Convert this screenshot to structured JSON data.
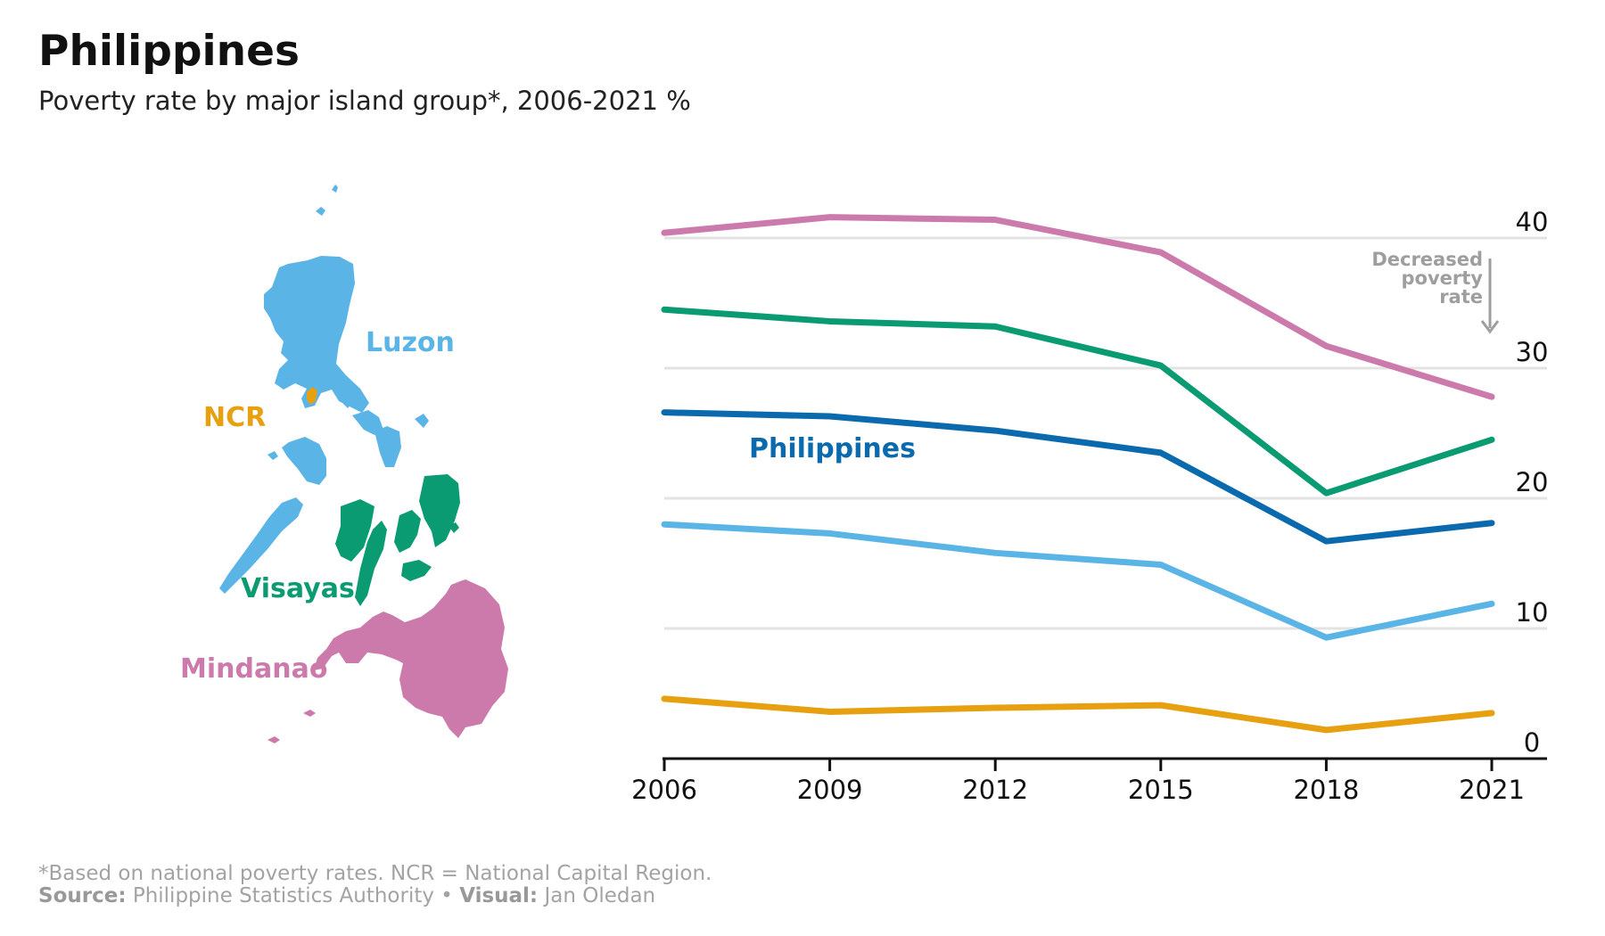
{
  "title": "Philippines",
  "subtitle": "Poverty rate by major island group*, 2006-2021 %",
  "footnote": {
    "note": "*Based on national poverty rates. NCR = National Capital Region.",
    "source_label": "Source:",
    "source": "Philippine Statistics Authority",
    "separator": "•",
    "visual_label": "Visual:",
    "visual": "Jan Oledan"
  },
  "map": {
    "labels": {
      "luzon": "Luzon",
      "ncr": "NCR",
      "visayas": "Visayas",
      "mindanao": "Mindanao"
    },
    "colors": {
      "luzon": "#5ab4e6",
      "ncr": "#e6a010",
      "visayas": "#0a9b72",
      "mindanao": "#cc7aab"
    }
  },
  "annotation": {
    "line1": "Decreased",
    "line2": "poverty",
    "line3": "rate"
  },
  "chart_data": {
    "type": "line",
    "x": [
      2006,
      2009,
      2012,
      2015,
      2018,
      2021
    ],
    "xlim": [
      2006,
      2021
    ],
    "ylim": [
      0,
      40
    ],
    "yticks": [
      0,
      10,
      20,
      30,
      40
    ],
    "grid": true,
    "xlabel": "",
    "ylabel": "",
    "series": [
      {
        "name": "Mindanao",
        "color": "#cc7aab",
        "values": [
          40.4,
          41.6,
          41.4,
          38.9,
          31.7,
          27.8
        ]
      },
      {
        "name": "Visayas",
        "color": "#0a9b72",
        "values": [
          34.5,
          33.6,
          33.2,
          30.2,
          20.4,
          24.5
        ]
      },
      {
        "name": "Philippines",
        "color": "#0a6aad",
        "values": [
          26.6,
          26.3,
          25.2,
          23.5,
          16.7,
          18.1
        ],
        "labeled": true
      },
      {
        "name": "Luzon",
        "color": "#5ab4e6",
        "values": [
          18.0,
          17.3,
          15.8,
          14.9,
          9.3,
          11.9
        ]
      },
      {
        "name": "NCR",
        "color": "#e6a010",
        "values": [
          4.6,
          3.6,
          3.9,
          4.1,
          2.2,
          3.5
        ]
      }
    ]
  }
}
